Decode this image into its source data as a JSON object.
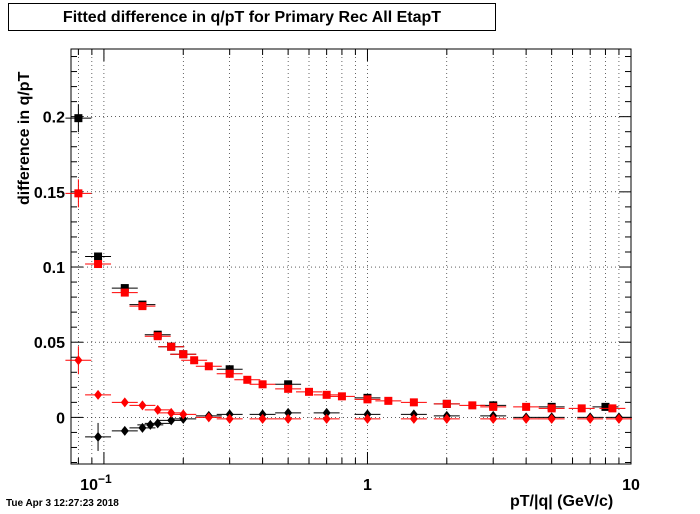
{
  "chart_data": {
    "type": "scatter",
    "title": "Fitted difference in q/pT for Primary Rec All EtapT",
    "xlabel": "pT/|q| (GeV/c)",
    "ylabel": "difference in q/pT",
    "xscale": "log",
    "xlim": [
      0.075,
      10
    ],
    "ylim": [
      -0.031,
      0.245
    ],
    "xticks": [
      {
        "value": 0.1,
        "label": "10",
        "exp": "−1"
      },
      {
        "value": 1,
        "label": "1",
        "exp": ""
      },
      {
        "value": 10,
        "label": "10",
        "exp": ""
      }
    ],
    "yticks": [
      {
        "value": 0.0,
        "label": "0"
      },
      {
        "value": 0.05,
        "label": "0.05"
      },
      {
        "value": 0.1,
        "label": "0.1"
      },
      {
        "value": 0.15,
        "label": "0.15"
      },
      {
        "value": 0.2,
        "label": "0.2"
      }
    ],
    "grid": true,
    "series": [
      {
        "marker": "square",
        "color": "#000000",
        "x": [
          0.08,
          0.095,
          0.12,
          0.14,
          0.16,
          0.18,
          0.2,
          0.3,
          0.5,
          1.0,
          2.0,
          3.0,
          5.0,
          8.0
        ],
        "y": [
          0.199,
          0.107,
          0.086,
          0.075,
          0.055,
          0.047,
          0.042,
          0.032,
          0.022,
          0.013,
          0.009,
          0.008,
          0.007,
          0.007
        ]
      },
      {
        "marker": "square",
        "color": "#ff0000",
        "x": [
          0.08,
          0.095,
          0.12,
          0.14,
          0.16,
          0.18,
          0.2,
          0.22,
          0.25,
          0.3,
          0.35,
          0.4,
          0.5,
          0.6,
          0.7,
          0.8,
          1.0,
          1.2,
          1.5,
          2.0,
          2.5,
          3.0,
          4.0,
          5.0,
          6.5,
          8.5
        ],
        "y": [
          0.149,
          0.102,
          0.083,
          0.074,
          0.054,
          0.047,
          0.042,
          0.038,
          0.034,
          0.029,
          0.025,
          0.022,
          0.019,
          0.017,
          0.015,
          0.014,
          0.012,
          0.011,
          0.01,
          0.009,
          0.008,
          0.007,
          0.007,
          0.006,
          0.006,
          0.006
        ]
      },
      {
        "marker": "diamond",
        "color": "#000000",
        "x": [
          0.095,
          0.12,
          0.14,
          0.15,
          0.16,
          0.18,
          0.2,
          0.25,
          0.3,
          0.4,
          0.5,
          0.7,
          1.0,
          1.5,
          2.0,
          3.0,
          4.0,
          5.0,
          7.0,
          9.0
        ],
        "y": [
          -0.013,
          -0.009,
          -0.007,
          -0.005,
          -0.004,
          -0.002,
          -0.001,
          0.001,
          0.002,
          0.002,
          0.003,
          0.003,
          0.002,
          0.002,
          0.001,
          0.001,
          0.0,
          0.0,
          0.0,
          0.0
        ]
      },
      {
        "marker": "diamond",
        "color": "#ff0000",
        "x": [
          0.08,
          0.095,
          0.12,
          0.14,
          0.16,
          0.18,
          0.2,
          0.25,
          0.3,
          0.4,
          0.5,
          0.7,
          1.0,
          1.5,
          2.0,
          3.0,
          4.0,
          5.0,
          7.0,
          9.0
        ],
        "y": [
          0.038,
          0.015,
          0.01,
          0.008,
          0.005,
          0.003,
          0.002,
          0.0,
          -0.001,
          -0.001,
          -0.001,
          -0.001,
          -0.001,
          -0.001,
          -0.001,
          -0.001,
          -0.001,
          -0.001,
          -0.001,
          -0.001
        ]
      }
    ]
  },
  "footer": {
    "timestamp": "Tue Apr  3 12:27:23 2018"
  }
}
